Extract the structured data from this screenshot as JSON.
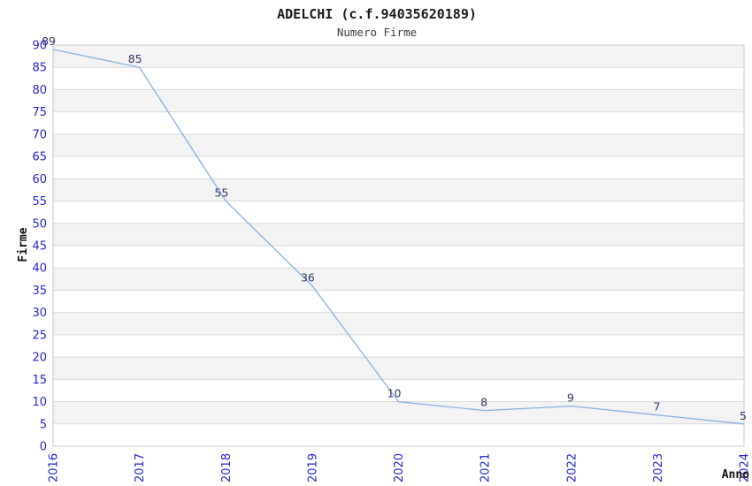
{
  "chart": {
    "title": "ADELCHI (c.f.94035620189)",
    "subtitle": "Numero Firme"
  },
  "chart_data": {
    "type": "line",
    "title": "ADELCHI (c.f.94035620189)",
    "subtitle": "Numero Firme",
    "xlabel": "Anno",
    "ylabel": "Firme",
    "categories": [
      "2016",
      "2017",
      "2018",
      "2019",
      "2020",
      "2021",
      "2022",
      "2023",
      "2024"
    ],
    "values": [
      89,
      85,
      55,
      36,
      10,
      8,
      9,
      7,
      5
    ],
    "value_labels": [
      "89",
      "85",
      "55",
      "36",
      "10",
      "8",
      "9",
      "7",
      "5"
    ],
    "ylim": [
      0,
      90
    ],
    "ytick_step": 5,
    "grid": "horizontal-bands",
    "legend": "none",
    "colors": {
      "line": "#85b1e2",
      "tick_label": "#2424cc",
      "value_label": "#333366",
      "band_gray": "#f3f3f3",
      "band_white": "#ffffff",
      "gridline": "#d9d9d9",
      "plot_border": "#c9c9c9",
      "background": "#ffffff"
    }
  }
}
